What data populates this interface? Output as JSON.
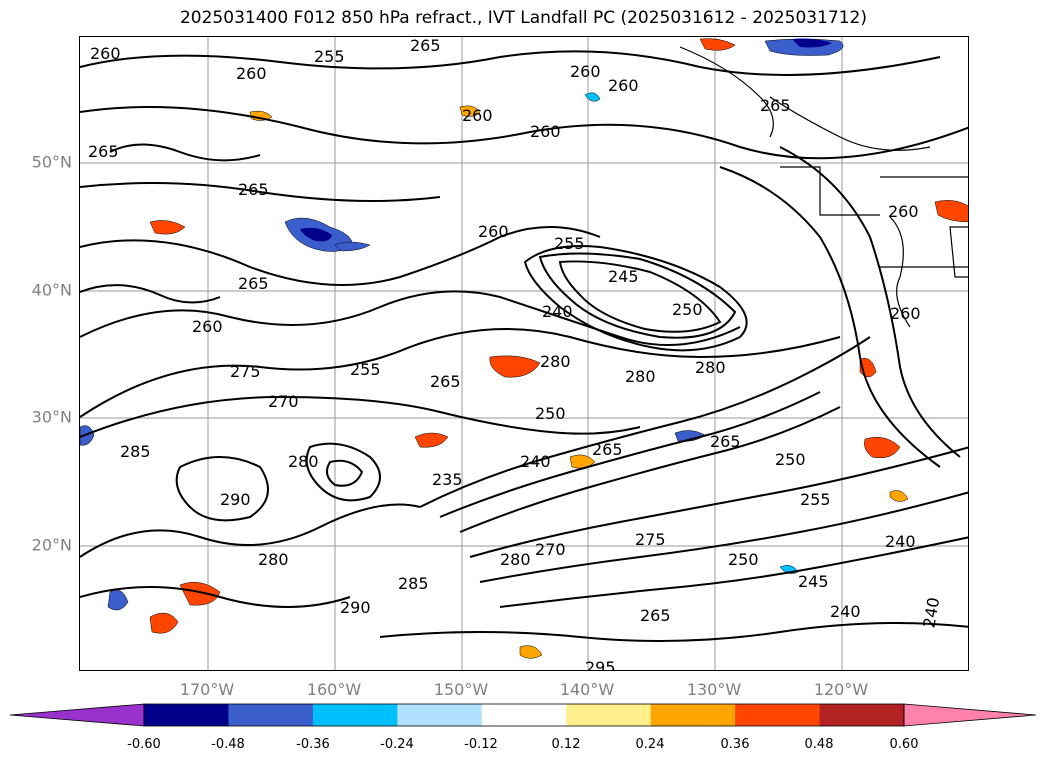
{
  "title": "2025031400 F012 850 hPa refract., IVT Landfall PC (2025031612 - 2025031712)",
  "lat_labels": [
    "50°N",
    "40°N",
    "30°N",
    "20°N"
  ],
  "lon_labels": [
    "170°W",
    "160°W",
    "150°W",
    "140°W",
    "130°W",
    "120°W"
  ],
  "colorbar": {
    "ticks": [
      "-0.60",
      "-0.48",
      "-0.36",
      "-0.24",
      "-0.12",
      "0.12",
      "0.24",
      "0.36",
      "0.48",
      "0.60"
    ],
    "colors": [
      "#9932cc",
      "#00008b",
      "#3a5fcd",
      "#00bfff",
      "#b0e2ff",
      "#ffffff",
      "#fff08c",
      "#ffa500",
      "#ff4500",
      "#b22222",
      "#ff82ab"
    ]
  },
  "contour_labels": [
    "260",
    "255",
    "265",
    "260",
    "260",
    "260",
    "260",
    "265",
    "265",
    "260",
    "255",
    "245",
    "250",
    "240",
    "260",
    "265",
    "265",
    "260",
    "255",
    "275",
    "265",
    "280",
    "280",
    "280",
    "250",
    "285",
    "270",
    "280",
    "235",
    "240",
    "265",
    "265",
    "250",
    "290",
    "280",
    "285",
    "280",
    "270",
    "275",
    "250",
    "245",
    "240",
    "240",
    "290",
    "265",
    "295",
    "260",
    "260",
    "255",
    "240"
  ],
  "coast_color": "#000000"
}
